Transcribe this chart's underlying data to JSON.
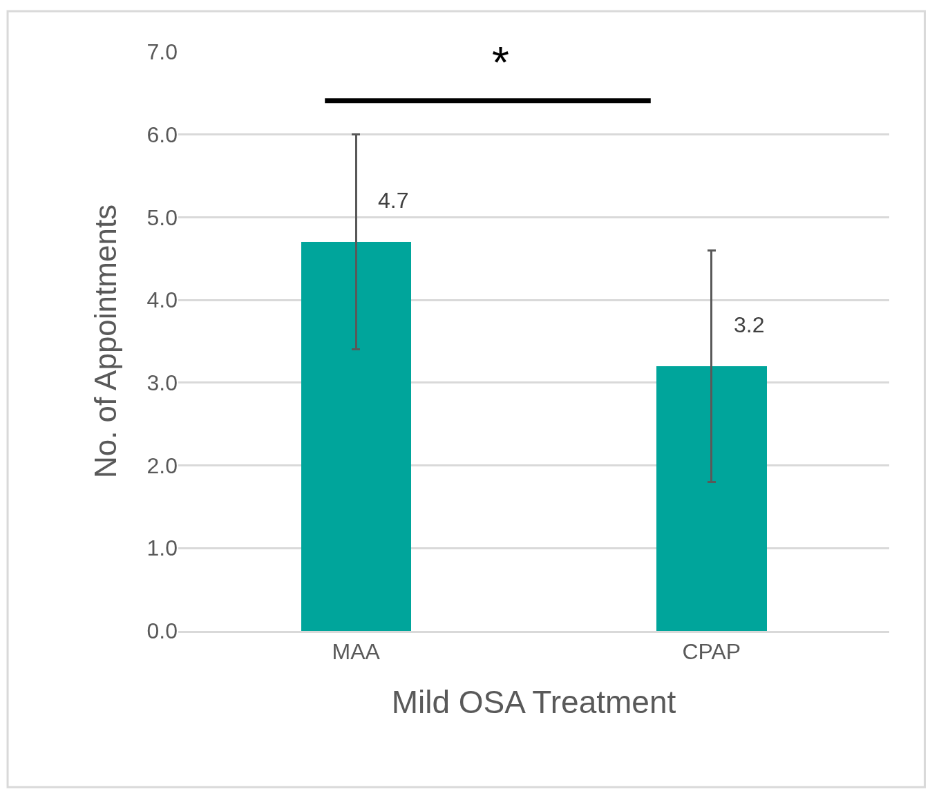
{
  "chart_data": {
    "type": "bar",
    "xlabel": "Mild OSA Treatment",
    "ylabel": "No. of Appointments",
    "categories": [
      "MAA",
      "CPAP"
    ],
    "values": [
      4.7,
      3.2
    ],
    "color": "#00a59b",
    "errors": [
      [
        3.4,
        6.0
      ],
      [
        1.8,
        4.6
      ]
    ],
    "data_labels": true,
    "ylim": [
      0,
      7
    ],
    "yticks": [
      {
        "value": 0,
        "label": "0.0"
      },
      {
        "value": 1,
        "label": "1.0"
      },
      {
        "value": 2,
        "label": "2.0"
      },
      {
        "value": 3,
        "label": "3.0"
      },
      {
        "value": 4,
        "label": "4.0"
      },
      {
        "value": 5,
        "label": "5.0"
      },
      {
        "value": 6,
        "label": "6.0"
      },
      {
        "value": 7,
        "label": "7.0"
      }
    ],
    "grid": "y",
    "annotations": [
      "*"
    ]
  }
}
